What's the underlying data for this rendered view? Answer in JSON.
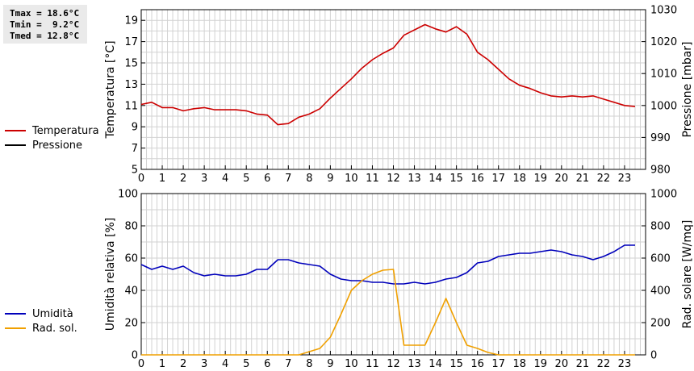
{
  "stats": {
    "tmax": "Tmax = 18.6°C",
    "tmin": "Tmin =  9.2°C",
    "tmed": "Tmed = 12.8°C"
  },
  "legend_top": [
    {
      "label": "Temperatura",
      "color": "#cc0000"
    },
    {
      "label": "Pressione",
      "color": "#000000"
    }
  ],
  "legend_bottom": [
    {
      "label": "Umidità",
      "color": "#0000bb"
    },
    {
      "label": "Rad. sol.",
      "color": "#f0a000"
    }
  ],
  "chart_data": [
    {
      "type": "line",
      "ylabel": "Temperatura [°C]",
      "y2label": "Pressione [mbar]",
      "xlim": [
        0,
        24
      ],
      "x_ticks": [
        0,
        1,
        2,
        3,
        4,
        5,
        6,
        7,
        8,
        9,
        10,
        11,
        12,
        13,
        14,
        15,
        16,
        17,
        18,
        19,
        20,
        21,
        22,
        23
      ],
      "ylim": [
        5,
        20
      ],
      "y_ticks": [
        5,
        7,
        9,
        11,
        13,
        15,
        17,
        19
      ],
      "y2lim": [
        980,
        1030
      ],
      "y2_ticks": [
        980,
        990,
        1000,
        1010,
        1020,
        1030
      ],
      "grid": true,
      "series": [
        {
          "name": "Temperatura",
          "color": "#cc0000",
          "axis": "left",
          "x": [
            0,
            0.5,
            1,
            1.5,
            2,
            2.5,
            3,
            3.5,
            4,
            4.5,
            5,
            5.5,
            6,
            6.5,
            7,
            7.5,
            8,
            8.5,
            9,
            9.5,
            10,
            10.5,
            11,
            11.5,
            12,
            12.5,
            13,
            13.5,
            14,
            14.5,
            15,
            15.5,
            16,
            16.5,
            17,
            17.5,
            18,
            18.5,
            19,
            19.5,
            20,
            20.5,
            21,
            21.5,
            22,
            22.5,
            23,
            23.5
          ],
          "values": [
            11.1,
            11.3,
            10.8,
            10.8,
            10.5,
            10.7,
            10.8,
            10.6,
            10.6,
            10.6,
            10.5,
            10.2,
            10.1,
            9.2,
            9.3,
            9.9,
            10.2,
            10.7,
            11.7,
            12.6,
            13.5,
            14.5,
            15.3,
            15.9,
            16.4,
            17.6,
            18.1,
            18.6,
            18.2,
            17.9,
            18.4,
            17.7,
            16.0,
            15.3,
            14.4,
            13.5,
            12.9,
            12.6,
            12.2,
            11.9,
            11.8,
            11.9,
            11.8,
            11.9,
            11.6,
            11.3,
            11.0,
            10.9
          ]
        },
        {
          "name": "Pressione",
          "color": "#000000",
          "axis": "right",
          "x": [],
          "values": []
        }
      ]
    },
    {
      "type": "line",
      "ylabel": "Umidità relativa [%]",
      "y2label": "Rad. solare [W/mq]",
      "xlim": [
        0,
        24
      ],
      "x_ticks": [
        0,
        1,
        2,
        3,
        4,
        5,
        6,
        7,
        8,
        9,
        10,
        11,
        12,
        13,
        14,
        15,
        16,
        17,
        18,
        19,
        20,
        21,
        22,
        23
      ],
      "ylim": [
        0,
        100
      ],
      "y_ticks": [
        0,
        20,
        40,
        60,
        80,
        100
      ],
      "y2lim": [
        0,
        1000
      ],
      "y2_ticks": [
        0,
        200,
        400,
        600,
        800,
        1000
      ],
      "grid": true,
      "series": [
        {
          "name": "Umidità",
          "color": "#0000bb",
          "axis": "left",
          "x": [
            0,
            0.5,
            1,
            1.5,
            2,
            2.5,
            3,
            3.5,
            4,
            4.5,
            5,
            5.5,
            6,
            6.5,
            7,
            7.5,
            8,
            8.5,
            9,
            9.5,
            10,
            10.5,
            11,
            11.5,
            12,
            12.5,
            13,
            13.5,
            14,
            14.5,
            15,
            15.5,
            16,
            16.5,
            17,
            17.5,
            18,
            18.5,
            19,
            19.5,
            20,
            20.5,
            21,
            21.5,
            22,
            22.5,
            23,
            23.5
          ],
          "values": [
            56,
            53,
            55,
            53,
            55,
            51,
            49,
            50,
            49,
            49,
            50,
            53,
            53,
            59,
            59,
            57,
            56,
            55,
            50,
            47,
            46,
            46,
            45,
            45,
            44,
            44,
            45,
            44,
            45,
            47,
            48,
            51,
            57,
            58,
            61,
            62,
            63,
            63,
            64,
            65,
            64,
            62,
            61,
            59,
            61,
            64,
            68,
            68
          ]
        },
        {
          "name": "Rad. sol.",
          "color": "#f0a000",
          "axis": "right",
          "x": [
            0,
            0.5,
            1,
            1.5,
            2,
            2.5,
            3,
            3.5,
            4,
            4.5,
            5,
            5.5,
            6,
            6.5,
            7,
            7.5,
            8,
            8.5,
            9,
            9.5,
            10,
            10.5,
            11,
            11.5,
            12,
            12.5,
            13,
            13.5,
            14,
            14.5,
            15,
            15.5,
            16,
            16.5,
            17,
            17.5,
            18,
            18.5,
            19,
            19.5,
            20,
            20.5,
            21,
            21.5,
            22,
            22.5,
            23,
            23.5
          ],
          "values": [
            0,
            0,
            0,
            0,
            0,
            0,
            0,
            0,
            0,
            0,
            0,
            0,
            0,
            0,
            0,
            0,
            20,
            40,
            110,
            250,
            400,
            460,
            500,
            525,
            530,
            60,
            60,
            60,
            200,
            350,
            200,
            60,
            40,
            15,
            0,
            0,
            0,
            0,
            0,
            0,
            0,
            0,
            0,
            0,
            0,
            0,
            0,
            0
          ]
        }
      ]
    }
  ]
}
